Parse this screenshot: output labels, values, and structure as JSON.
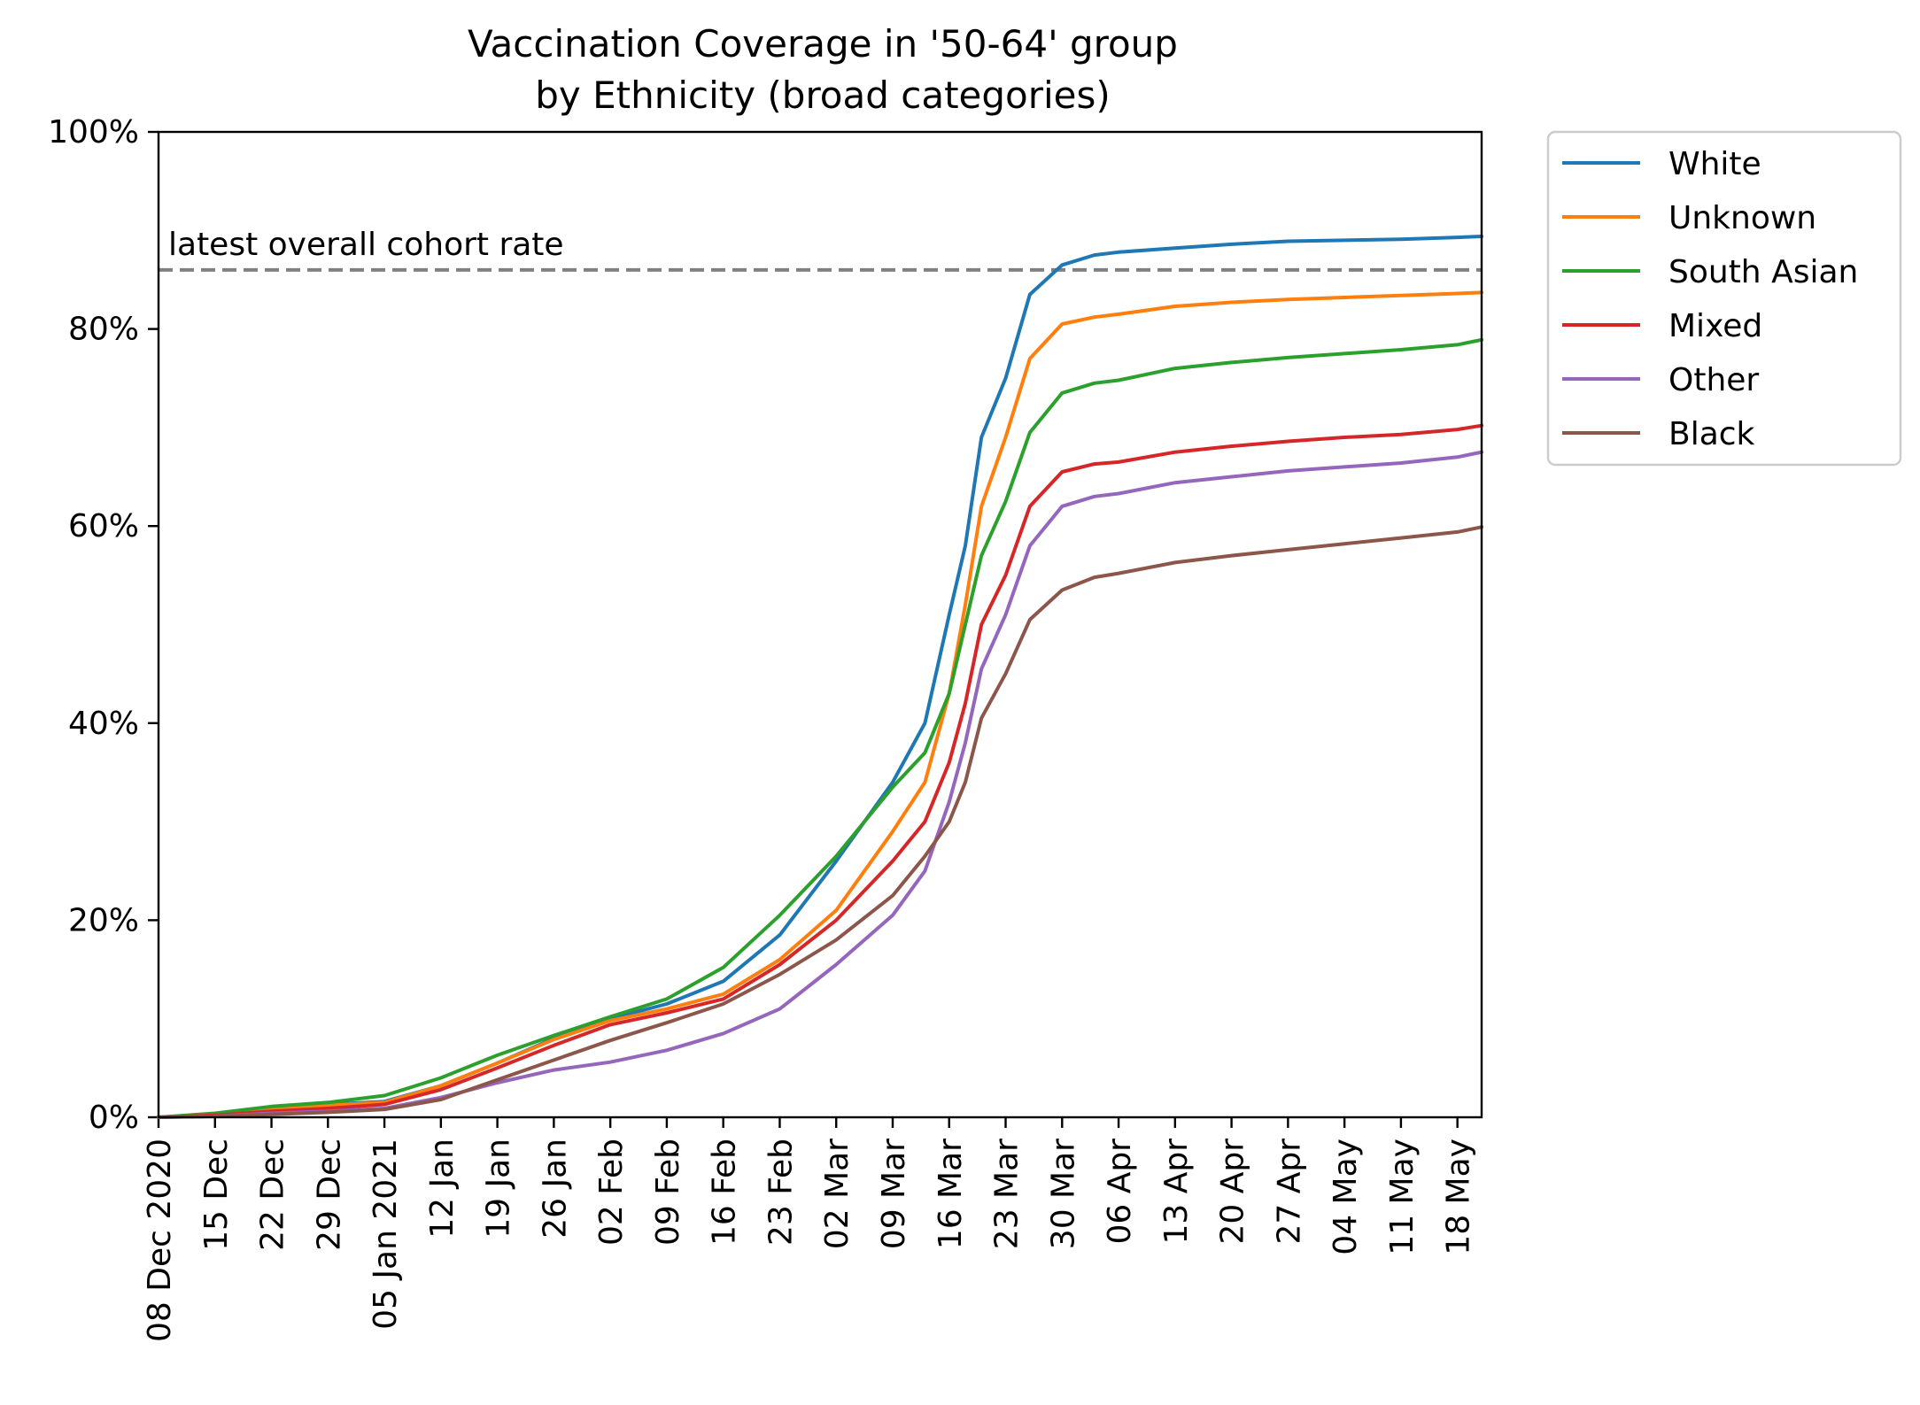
{
  "chart_data": {
    "type": "line",
    "title": "Vaccination Coverage in '50-64' group",
    "subtitle": "by Ethnicity (broad categories)",
    "xlabel": "",
    "ylabel": "",
    "ylim": [
      0,
      100
    ],
    "y_ticks": [
      0,
      20,
      40,
      60,
      80,
      100
    ],
    "y_tick_labels": [
      "0%",
      "20%",
      "40%",
      "60%",
      "80%",
      "100%"
    ],
    "x_range": [
      "2020-12-08",
      "2021-05-21"
    ],
    "x_ticks": [
      "2020-12-08",
      "2020-12-15",
      "2020-12-22",
      "2020-12-29",
      "2021-01-05",
      "2021-01-12",
      "2021-01-19",
      "2021-01-26",
      "2021-02-02",
      "2021-02-09",
      "2021-02-16",
      "2021-02-23",
      "2021-03-02",
      "2021-03-09",
      "2021-03-16",
      "2021-03-23",
      "2021-03-30",
      "2021-04-06",
      "2021-04-13",
      "2021-04-20",
      "2021-04-27",
      "2021-05-04",
      "2021-05-11",
      "2021-05-18"
    ],
    "x_tick_labels": [
      "08 Dec 2020",
      "15 Dec",
      "22 Dec",
      "29 Dec",
      "05 Jan 2021",
      "12 Jan",
      "19 Jan",
      "26 Jan",
      "02 Feb",
      "09 Feb",
      "16 Feb",
      "23 Feb",
      "02 Mar",
      "09 Mar",
      "16 Mar",
      "23 Mar",
      "30 Mar",
      "06 Apr",
      "13 Apr",
      "20 Apr",
      "27 Apr",
      "04 May",
      "11 May",
      "18 May"
    ],
    "grid": false,
    "legend_position": "outside-top-right",
    "reference_line": {
      "value": 86,
      "label": "latest overall cohort rate",
      "color": "#808080",
      "style": "dashed"
    },
    "x": [
      "2020-12-08",
      "2020-12-15",
      "2020-12-22",
      "2020-12-29",
      "2021-01-05",
      "2021-01-12",
      "2021-01-19",
      "2021-01-26",
      "2021-02-02",
      "2021-02-09",
      "2021-02-16",
      "2021-02-23",
      "2021-03-02",
      "2021-03-09",
      "2021-03-13",
      "2021-03-16",
      "2021-03-18",
      "2021-03-20",
      "2021-03-23",
      "2021-03-26",
      "2021-03-30",
      "2021-04-03",
      "2021-04-06",
      "2021-04-13",
      "2021-04-20",
      "2021-04-27",
      "2021-05-04",
      "2021-05-11",
      "2021-05-18",
      "2021-05-21"
    ],
    "series": [
      {
        "name": "White",
        "color": "#1f77b4",
        "values": [
          0,
          0.3,
          0.9,
          1.3,
          1.6,
          3.2,
          5.5,
          8.0,
          10.0,
          11.5,
          13.8,
          18.5,
          26.0,
          34.0,
          40.0,
          51.0,
          58.0,
          69.0,
          75.0,
          83.5,
          86.5,
          87.5,
          87.8,
          88.2,
          88.6,
          88.9,
          89.0,
          89.1,
          89.3,
          89.4
        ]
      },
      {
        "name": "Unknown",
        "color": "#ff7f0e",
        "values": [
          0,
          0.3,
          0.8,
          1.2,
          1.5,
          3.2,
          5.5,
          7.9,
          9.8,
          11.0,
          12.5,
          16.0,
          21.0,
          29.0,
          34.0,
          43.0,
          52.0,
          62.0,
          69.0,
          77.0,
          80.5,
          81.2,
          81.5,
          82.3,
          82.7,
          83.0,
          83.2,
          83.4,
          83.6,
          83.7
        ]
      },
      {
        "name": "South Asian",
        "color": "#2ca02c",
        "values": [
          0,
          0.4,
          1.1,
          1.5,
          2.2,
          4.0,
          6.3,
          8.3,
          10.2,
          12.0,
          15.2,
          20.5,
          26.5,
          33.5,
          37.0,
          43.0,
          50.0,
          57.0,
          62.5,
          69.5,
          73.5,
          74.5,
          74.8,
          76.0,
          76.6,
          77.1,
          77.5,
          77.9,
          78.4,
          78.9
        ]
      },
      {
        "name": "Mixed",
        "color": "#d62728",
        "values": [
          0,
          0.2,
          0.6,
          0.9,
          1.3,
          2.8,
          5.0,
          7.3,
          9.4,
          10.6,
          12.0,
          15.5,
          20.0,
          26.0,
          30.0,
          36.0,
          42.0,
          50.0,
          55.0,
          62.0,
          65.5,
          66.3,
          66.5,
          67.5,
          68.1,
          68.6,
          69.0,
          69.3,
          69.8,
          70.2
        ]
      },
      {
        "name": "Other",
        "color": "#9467bd",
        "values": [
          0,
          0.1,
          0.4,
          0.6,
          0.9,
          2.0,
          3.5,
          4.8,
          5.6,
          6.8,
          8.5,
          11.0,
          15.5,
          20.5,
          25.0,
          32.0,
          38.0,
          45.5,
          51.0,
          58.0,
          62.0,
          63.0,
          63.3,
          64.4,
          65.0,
          65.6,
          66.0,
          66.4,
          67.0,
          67.5
        ]
      },
      {
        "name": "Black",
        "color": "#8c564b",
        "values": [
          0,
          0.1,
          0.3,
          0.5,
          0.8,
          1.8,
          3.8,
          5.8,
          7.8,
          9.6,
          11.5,
          14.5,
          18.0,
          22.5,
          26.5,
          30.0,
          34.0,
          40.5,
          45.0,
          50.5,
          53.5,
          54.8,
          55.2,
          56.3,
          57.0,
          57.6,
          58.2,
          58.8,
          59.4,
          59.9
        ]
      }
    ]
  }
}
